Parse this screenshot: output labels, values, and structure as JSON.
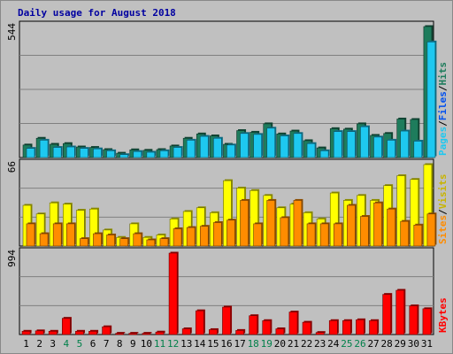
{
  "chart_data": {
    "type": "bar",
    "title": "Daily usage for August 2018",
    "days": [
      "1",
      "2",
      "3",
      "4",
      "5",
      "6",
      "7",
      "8",
      "9",
      "10",
      "11",
      "12",
      "13",
      "14",
      "15",
      "16",
      "17",
      "18",
      "19",
      "20",
      "21",
      "22",
      "23",
      "24",
      "25",
      "26",
      "27",
      "28",
      "29",
      "30",
      "31"
    ],
    "weekend_days": [
      "4",
      "5",
      "11",
      "12",
      "18",
      "19",
      "25",
      "26"
    ],
    "colors": {
      "hits": "#1e7c5c",
      "files": "#1ec8f0",
      "visits": "#ffff00",
      "sites": "#ff8c00",
      "kbytes": "#ff0000",
      "weekday_label": "#000000",
      "weekend_label": "#00804a",
      "grid": "#808080",
      "plot_bg": "#c0c0c0"
    },
    "panels": [
      {
        "name": "hits-files",
        "ymax_label": "544",
        "ymax": 544,
        "legend": [
          {
            "text": "Hits",
            "color": "#1e7c5c"
          },
          {
            "text": "/",
            "color": "#000000"
          },
          {
            "text": "Files",
            "color": "#0050f0"
          },
          {
            "text": "/",
            "color": "#000000"
          },
          {
            "text": "Pages",
            "color": "#1ec8f0"
          }
        ],
        "series": [
          {
            "name": "Hits",
            "values": [
              52,
              80,
              55,
              58,
              44,
              42,
              33,
              18,
              32,
              30,
              33,
              48,
              80,
              98,
              90,
              55,
              112,
              105,
              140,
              98,
              110,
              70,
              40,
              120,
              118,
              140,
              92,
              100,
              160,
              158,
              544
            ]
          },
          {
            "name": "Files",
            "values": [
              38,
              72,
              42,
              44,
              38,
              36,
              28,
              12,
              25,
              22,
              28,
              42,
              72,
              88,
              80,
              52,
              100,
              96,
              122,
              90,
              100,
              58,
              28,
              108,
              108,
              128,
              85,
              72,
              110,
              68,
              480
            ]
          }
        ]
      },
      {
        "name": "visits-sites",
        "ymax_label": "66",
        "ymax": 66,
        "legend": [
          {
            "text": "Visits",
            "color": "#c8b400"
          },
          {
            "text": "/",
            "color": "#000000"
          },
          {
            "text": "Sites",
            "color": "#ff8c00"
          }
        ],
        "series": [
          {
            "name": "Visits",
            "values": [
              33,
              26,
              35,
              34,
              29,
              30,
              13,
              7,
              18,
              7,
              9,
              22,
              28,
              31,
              27,
              53,
              47,
              45,
              41,
              31,
              34,
              27,
              22,
              43,
              37,
              41,
              37,
              49,
              57,
              54,
              66
            ]
          },
          {
            "name": "Sites",
            "values": [
              18,
              10,
              18,
              18,
              6,
              10,
              9,
              6,
              10,
              5,
              6,
              14,
              15,
              16,
              19,
              21,
              37,
              18,
              37,
              23,
              37,
              18,
              18,
              18,
              33,
              24,
              35,
              30,
              20,
              17,
              26
            ]
          }
        ]
      },
      {
        "name": "kbytes",
        "ymax_label": "994",
        "ymax": 994,
        "legend": [
          {
            "text": "KBytes",
            "color": "#ff0000"
          }
        ],
        "series": [
          {
            "name": "KBytes",
            "values": [
              40,
              45,
              40,
              198,
              40,
              40,
              95,
              15,
              15,
              15,
              30,
              994,
              70,
              290,
              60,
              335,
              50,
              230,
              170,
              70,
              275,
              150,
              25,
              170,
              170,
              180,
              170,
              490,
              540,
              350,
              315
            ]
          }
        ]
      }
    ]
  }
}
